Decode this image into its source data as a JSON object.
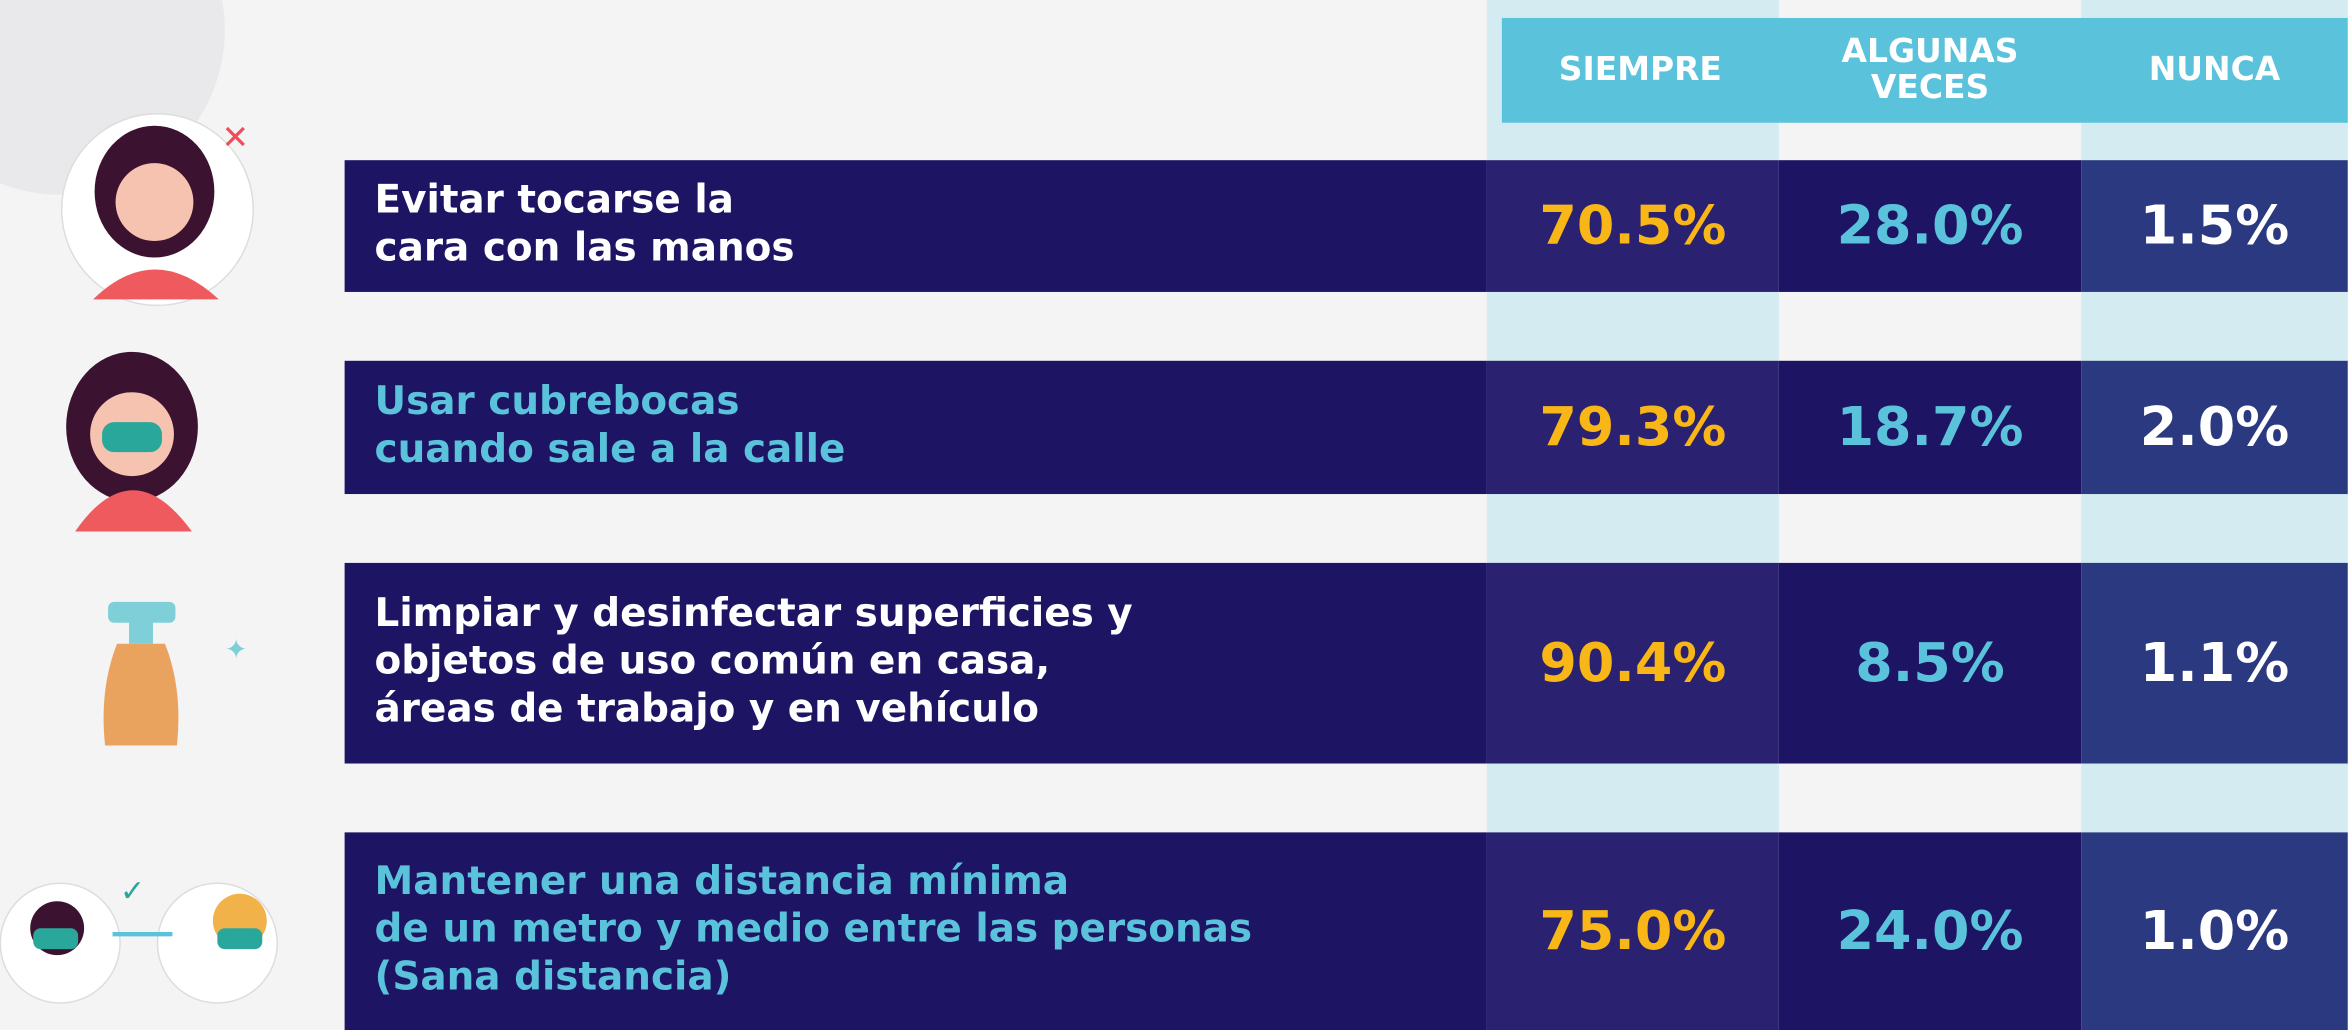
{
  "table": {
    "columns": [
      [
        "SIEMPRE"
      ],
      [
        "ALGUNAS",
        "VECES"
      ],
      [
        "NUNCA"
      ]
    ],
    "rows": [
      {
        "label": [
          "Evitar tocarse la",
          "cara con las manos"
        ],
        "values": [
          "70.5%",
          "28.0%",
          "1.5%"
        ]
      },
      {
        "label": [
          "Usar cubrebocas",
          "cuando sale a la calle"
        ],
        "values": [
          "79.3%",
          "18.7%",
          "2.0%"
        ]
      },
      {
        "label": [
          "Limpiar y desinfectar superficies y",
          "objetos de uso común en casa,",
          "áreas de trabajo y en vehículo"
        ],
        "values": [
          "90.4%",
          "8.5%",
          "1.1%"
        ]
      },
      {
        "label": [
          "Mantener una distancia mínima",
          "de un metro y medio entre las personas",
          "(Sana distancia)"
        ],
        "values": [
          "75.0%",
          "24.0%",
          "1.0%"
        ]
      }
    ]
  }
}
